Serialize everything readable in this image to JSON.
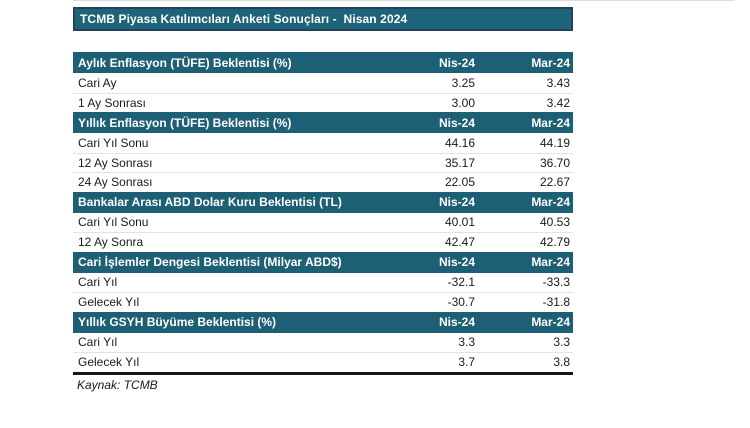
{
  "title": "TCMB Piyasa Katılımcıları Anketi Sonuçları -  Nisan 2024",
  "columns": [
    "Nis-24",
    "Mar-24"
  ],
  "sections": [
    {
      "header": "Aylık Enflasyon (TÜFE) Beklentisi (%)",
      "rows": [
        [
          "Cari Ay",
          "3.25",
          "3.43"
        ],
        [
          "1 Ay Sonrası",
          "3.00",
          "3.42"
        ]
      ]
    },
    {
      "header": "Yıllık Enflasyon (TÜFE) Beklentisi (%)",
      "rows": [
        [
          "Cari Yıl Sonu",
          "44.16",
          "44.19"
        ],
        [
          "12 Ay Sonrası",
          "35.17",
          "36.70"
        ],
        [
          "24 Ay Sonrası",
          "22.05",
          "22.67"
        ]
      ]
    },
    {
      "header": "Bankalar Arası ABD Dolar Kuru Beklentisi (TL)",
      "rows": [
        [
          "Cari Yıl Sonu",
          "40.01",
          "40.53"
        ],
        [
          "12 Ay Sonra",
          "42.47",
          "42.79"
        ]
      ]
    },
    {
      "header": "Cari İşlemler Dengesi Beklentisi (Milyar ABD$)",
      "rows": [
        [
          "Cari Yıl",
          "-32.1",
          "-33.3"
        ],
        [
          "Gelecek Yıl",
          "-30.7",
          "-31.8"
        ]
      ]
    },
    {
      "header": "Yıllık GSYH Büyüme Beklentisi (%)",
      "rows": [
        [
          "Cari Yıl",
          "3.3",
          "3.3"
        ],
        [
          "Gelecek Yıl",
          "3.7",
          "3.8"
        ]
      ]
    }
  ],
  "source": "Kaynak: TCMB",
  "colors": {
    "header_teal": "#1D5F74",
    "title_fill": "#1E6479",
    "title_border": "#25415F",
    "text": "#1a1a1a",
    "row_separator": "#e3e3e3"
  },
  "chart_data": {
    "type": "table",
    "title": "TCMB Piyasa Katılımcıları Anketi Sonuçları - Nisan 2024",
    "columns": [
      "Nis-24",
      "Mar-24"
    ],
    "groups": [
      {
        "name": "Aylık Enflasyon (TÜFE) Beklentisi (%)",
        "rows": [
          {
            "label": "Cari Ay",
            "values": [
              3.25,
              3.43
            ]
          },
          {
            "label": "1 Ay Sonrası",
            "values": [
              3.0,
              3.42
            ]
          }
        ]
      },
      {
        "name": "Yıllık Enflasyon (TÜFE) Beklentisi (%)",
        "rows": [
          {
            "label": "Cari Yıl Sonu",
            "values": [
              44.16,
              44.19
            ]
          },
          {
            "label": "12 Ay Sonrası",
            "values": [
              35.17,
              36.7
            ]
          },
          {
            "label": "24 Ay Sonrası",
            "values": [
              22.05,
              22.67
            ]
          }
        ]
      },
      {
        "name": "Bankalar Arası ABD Dolar Kuru Beklentisi (TL)",
        "rows": [
          {
            "label": "Cari Yıl Sonu",
            "values": [
              40.01,
              40.53
            ]
          },
          {
            "label": "12 Ay Sonra",
            "values": [
              42.47,
              42.79
            ]
          }
        ]
      },
      {
        "name": "Cari İşlemler Dengesi Beklentisi (Milyar ABD$)",
        "rows": [
          {
            "label": "Cari Yıl",
            "values": [
              -32.1,
              -33.3
            ]
          },
          {
            "label": "Gelecek Yıl",
            "values": [
              -30.7,
              -31.8
            ]
          }
        ]
      },
      {
        "name": "Yıllık GSYH Büyüme Beklentisi (%)",
        "rows": [
          {
            "label": "Cari Yıl",
            "values": [
              3.3,
              3.3
            ]
          },
          {
            "label": "Gelecek Yıl",
            "values": [
              3.7,
              3.8
            ]
          }
        ]
      }
    ],
    "source": "Kaynak: TCMB"
  }
}
